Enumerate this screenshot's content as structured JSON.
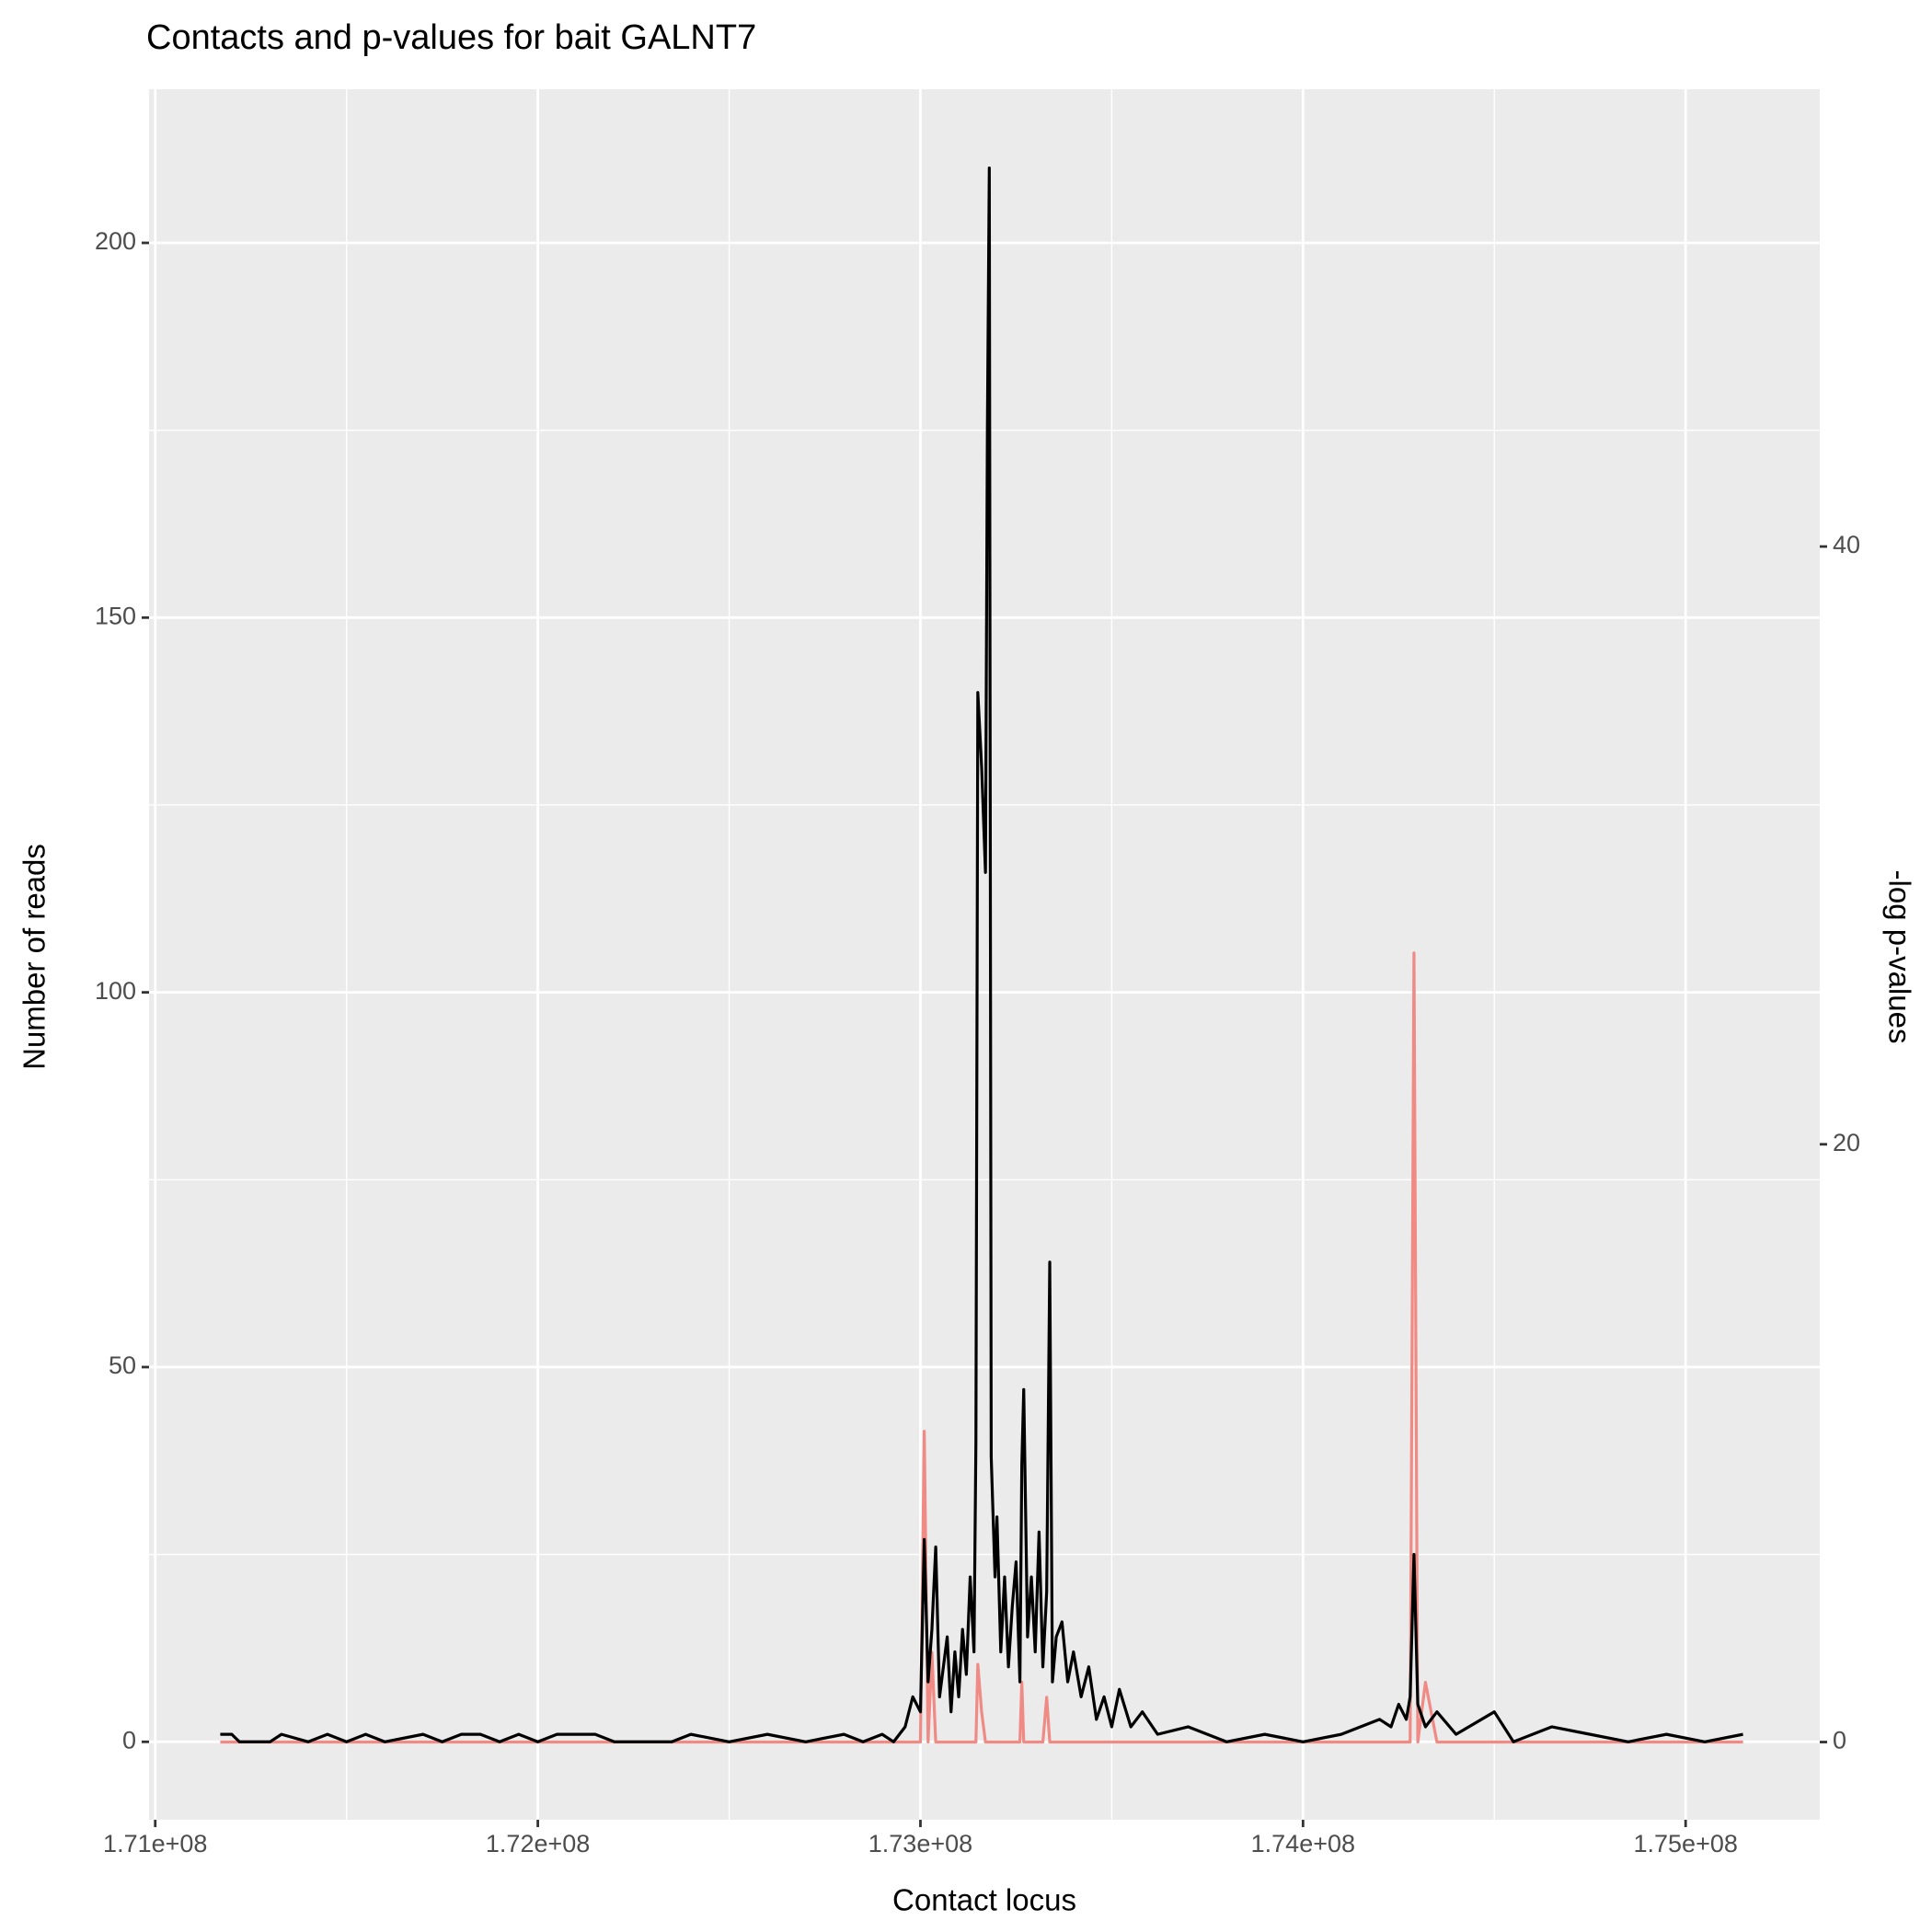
{
  "chart_data": {
    "type": "line",
    "title": "Contacts and p-values for bait GALNT7",
    "x_label": "Contact locus",
    "y_label": "Number of reads",
    "y2_label": "-log p-values",
    "x": [
      171170000,
      171200000,
      171220000,
      171300000,
      171330000,
      171400000,
      171450000,
      171500000,
      171550000,
      171600000,
      171700000,
      171750000,
      171800000,
      171850000,
      171900000,
      171950000,
      172000000,
      172050000,
      172150000,
      172200000,
      172350000,
      172400000,
      172500000,
      172600000,
      172700000,
      172800000,
      172850000,
      172900000,
      172930000,
      172960000,
      172980000,
      173000000,
      173010000,
      173020000,
      173030000,
      173040000,
      173050000,
      173070000,
      173080000,
      173090000,
      173100000,
      173110000,
      173120000,
      173130000,
      173140000,
      173145000,
      173150000,
      173160000,
      173170000,
      173175000,
      173180000,
      173185000,
      173195000,
      173200000,
      173210000,
      173220000,
      173230000,
      173240000,
      173250000,
      173260000,
      173265000,
      173270000,
      173280000,
      173290000,
      173300000,
      173310000,
      173320000,
      173330000,
      173338000,
      173345000,
      173355000,
      173370000,
      173385000,
      173400000,
      173420000,
      173440000,
      173460000,
      173480000,
      173500000,
      173520000,
      173550000,
      173580000,
      173620000,
      173700000,
      173800000,
      173900000,
      174000000,
      174100000,
      174150000,
      174200000,
      174230000,
      174250000,
      174270000,
      174280000,
      174290000,
      174300000,
      174320000,
      174350000,
      174400000,
      174500000,
      174550000,
      174650000,
      174750000,
      174850000,
      174950000,
      175050000,
      175150000
    ],
    "series": [
      {
        "color": "#000000",
        "axis": "y",
        "values": [
          1,
          1,
          0,
          0,
          1,
          0,
          1,
          0,
          1,
          0,
          1,
          0,
          1,
          1,
          0,
          1,
          0,
          1,
          1,
          0,
          0,
          1,
          0,
          1,
          0,
          1,
          0,
          1,
          0,
          2,
          6,
          4,
          27,
          8,
          15,
          26,
          6,
          14,
          4,
          12,
          6,
          15,
          9,
          22,
          12,
          40,
          140,
          130,
          116,
          175,
          210,
          38,
          22,
          30,
          12,
          22,
          10,
          18,
          24,
          8,
          37,
          47,
          14,
          22,
          12,
          28,
          10,
          20,
          64,
          8,
          14,
          16,
          8,
          12,
          6,
          10,
          3,
          6,
          2,
          7,
          2,
          4,
          1,
          2,
          0,
          1,
          0,
          1,
          2,
          3,
          2,
          5,
          3,
          6,
          25,
          5,
          2,
          4,
          1,
          4,
          0,
          2,
          1,
          0,
          1,
          0,
          1
        ]
      },
      {
        "color": "#f08a84",
        "axis": "y2",
        "values": [
          0,
          0,
          0,
          0,
          0,
          0,
          0,
          0,
          0,
          0,
          0,
          0,
          0,
          0,
          0,
          0,
          0,
          0,
          0,
          0,
          0,
          0,
          0,
          0,
          0,
          0,
          0,
          0,
          0,
          0,
          0,
          0,
          10.4,
          0,
          3,
          0,
          0,
          0,
          0,
          0,
          0,
          0,
          0,
          0,
          0,
          0,
          2.6,
          1,
          0,
          0,
          0,
          0,
          0,
          0,
          0,
          0,
          0,
          0,
          0,
          0,
          2,
          0,
          0,
          0,
          0,
          0,
          0,
          1.5,
          0,
          0,
          0,
          0,
          0,
          0,
          0,
          0,
          0,
          0,
          0,
          0,
          0,
          0,
          0,
          0,
          0,
          0,
          0,
          0,
          0,
          0,
          0,
          0,
          0,
          0,
          26.4,
          0,
          2,
          0,
          0,
          0,
          0,
          0,
          0,
          0,
          0,
          0,
          0
        ]
      }
    ],
    "xlim": [
      170983800,
      175350600
    ],
    "xticks": [
      {
        "value": 171000000,
        "label": "1.71e+08"
      },
      {
        "value": 172000000,
        "label": "1.72e+08"
      },
      {
        "value": 173000000,
        "label": "1.73e+08"
      },
      {
        "value": 174000000,
        "label": "1.74e+08"
      },
      {
        "value": 175000000,
        "label": "1.75e+08"
      }
    ],
    "ylim": [
      -10.4,
      220.5
    ],
    "yticks": [
      0,
      50,
      100,
      150,
      200
    ],
    "y2lim": [
      -2.6,
      55.3
    ],
    "y2ticks": [
      0,
      20,
      40
    ],
    "grid": true
  }
}
